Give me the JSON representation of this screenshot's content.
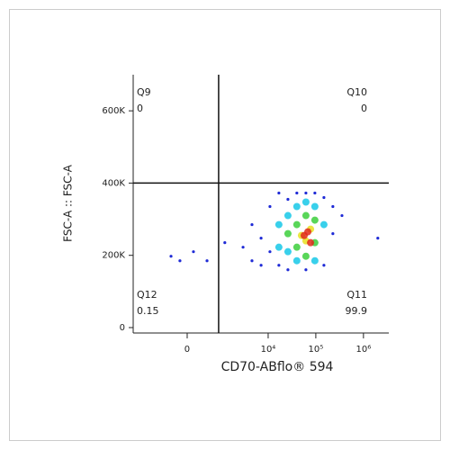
{
  "chart_data": {
    "type": "scatter",
    "x_label": "CD70-ABflo® 594",
    "y_label": "FSC-A :: FSC-A",
    "xscale": "biexponential",
    "xlim": [
      -2700,
      3400000
    ],
    "ylim": [
      -15000,
      700000
    ],
    "xticks": [
      0,
      {
        "value": 10000,
        "label": "10⁴"
      },
      {
        "value": 100000,
        "label": "10⁵"
      },
      {
        "value": 1000000,
        "label": "10⁶"
      }
    ],
    "yticks": [
      0,
      {
        "value": 200000,
        "label": "200K"
      },
      {
        "value": 400000,
        "label": "400K"
      },
      {
        "value": 600000,
        "label": "600K"
      }
    ],
    "gate": {
      "x": 870,
      "y": 400000
    },
    "quadrants": [
      {
        "name": "Q9",
        "value": 0,
        "corner": "top-left"
      },
      {
        "name": "Q10",
        "value": 0,
        "corner": "top-right"
      },
      {
        "name": "Q11",
        "value": 99.9,
        "corner": "bottom-right"
      },
      {
        "name": "Q12",
        "value": 0.15,
        "corner": "bottom-left"
      }
    ],
    "series": [
      {
        "color": "#1f2bd6",
        "x": [
          -345,
          -143,
          123,
          445,
          1200,
          2960,
          4570,
          7100,
          10900,
          16800,
          26000,
          62000,
          148000,
          228000,
          354000,
          2000000,
          10900,
          16800,
          40000,
          95600,
          228000,
          7100,
          148000,
          4570,
          62000,
          26000
        ],
        "y": [
          197500,
          185000,
          210000,
          185000,
          235000,
          222500,
          285000,
          172500,
          335000,
          372500,
          160000,
          160000,
          360000,
          260000,
          310000,
          247500,
          210000,
          172500,
          372500,
          372500,
          335000,
          247500,
          172500,
          185000,
          372500,
          355000
        ]
      },
      {
        "color": "#16c8e8",
        "x": [
          16800,
          26000,
          40000,
          62000,
          95600,
          26000,
          148000,
          16800,
          40000,
          95600
        ],
        "y": [
          285000,
          310000,
          335000,
          347500,
          335000,
          210000,
          285000,
          222500,
          185000,
          185000
        ]
      },
      {
        "color": "#3ccf3c",
        "x": [
          26000,
          40000,
          62000,
          95600,
          40000,
          62000,
          95600
        ],
        "y": [
          260000,
          285000,
          310000,
          297500,
          222500,
          197500,
          235000
        ]
      },
      {
        "color": "#e8e020",
        "x": [
          50000,
          77600,
          62000
        ],
        "y": [
          255000,
          272500,
          240000
        ]
      },
      {
        "color": "#e02a1a",
        "x": [
          57000,
          77600,
          68000
        ],
        "y": [
          255000,
          235000,
          265000
        ]
      }
    ]
  }
}
